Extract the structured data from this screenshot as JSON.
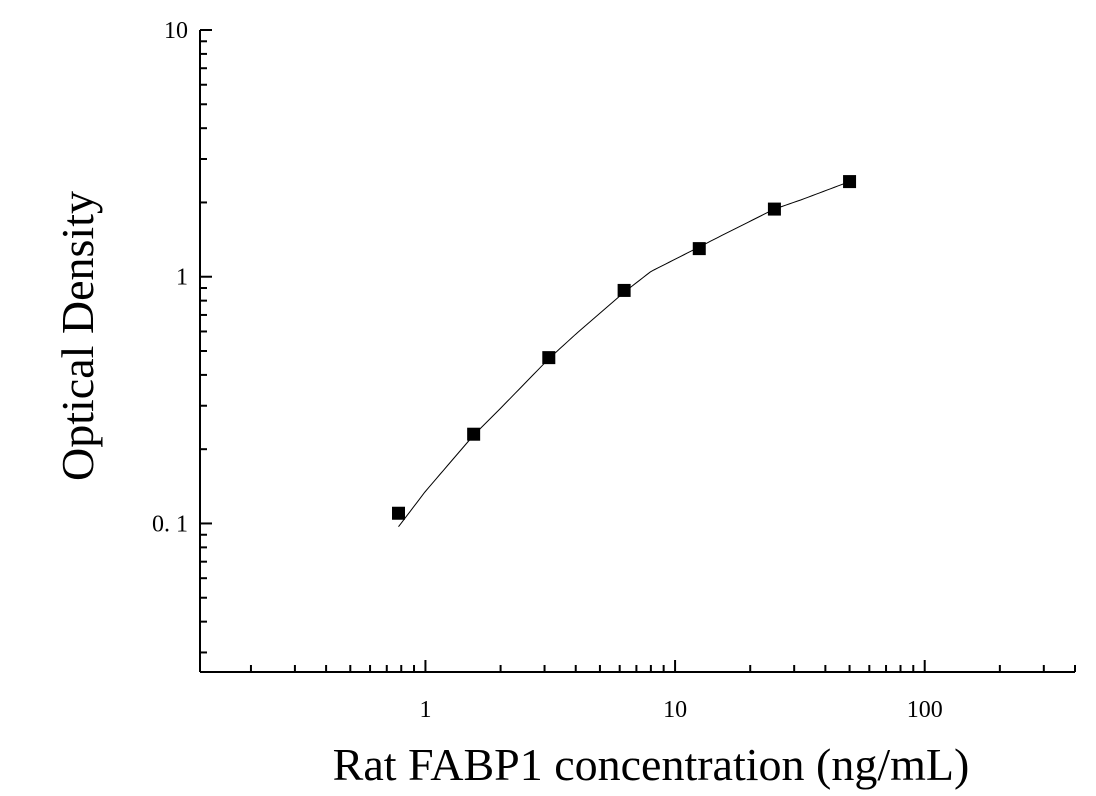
{
  "chart_data": {
    "type": "scatter",
    "xlabel": "Rat FABP1 concentration (ng/mL)",
    "ylabel": "Optical Density",
    "xscale": "log",
    "yscale": "log",
    "xlim": [
      0.125,
      400
    ],
    "ylim": [
      0.025,
      10
    ],
    "x_tick_labels": [
      "1",
      "10",
      "100"
    ],
    "y_tick_labels": [
      "0. 1",
      "1",
      "10"
    ],
    "grid": false,
    "series": [
      {
        "points": [
          {
            "x": 0.78,
            "y": 0.11
          },
          {
            "x": 1.56,
            "y": 0.23
          },
          {
            "x": 3.12,
            "y": 0.47
          },
          {
            "x": 6.25,
            "y": 0.88
          },
          {
            "x": 12.5,
            "y": 1.3
          },
          {
            "x": 25,
            "y": 1.88
          },
          {
            "x": 50,
            "y": 2.43
          }
        ],
        "fit": {
          "x": [
            0.78,
            1.0,
            1.56,
            2.0,
            3.12,
            4.0,
            6.25,
            8.0,
            12.5,
            16.0,
            25,
            32,
            50
          ],
          "y": [
            0.097,
            0.135,
            0.228,
            0.293,
            0.465,
            0.585,
            0.865,
            1.05,
            1.32,
            1.5,
            1.88,
            2.05,
            2.43
          ]
        }
      }
    ]
  }
}
